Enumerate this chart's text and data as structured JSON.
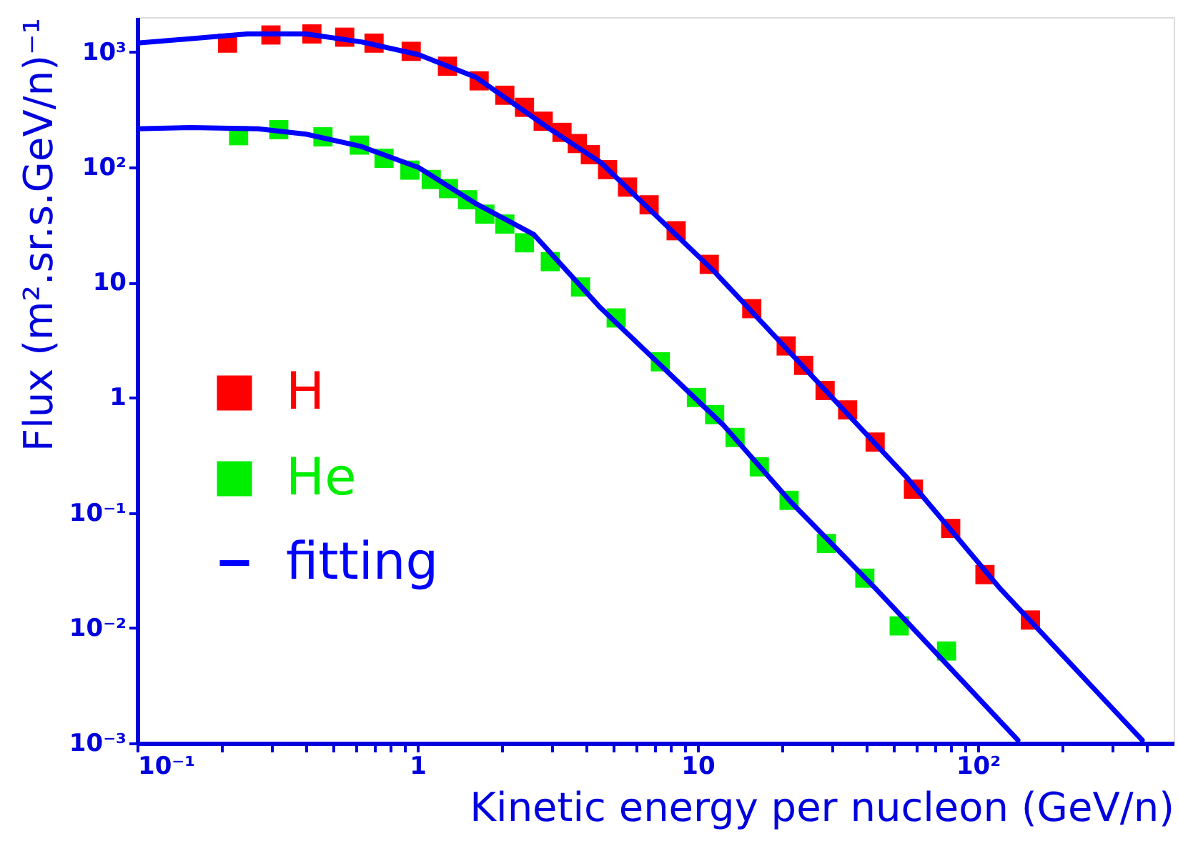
{
  "chart_data": {
    "type": "scatter",
    "xlabel": "Kinetic energy per nucleon (GeV/n)",
    "ylabel": "Flux (m².sr.s.GeV/n)⁻¹",
    "log": "xy",
    "xlim": [
      0.1,
      500
    ],
    "ylim": [
      0.001,
      2000
    ],
    "xticks": [
      {
        "value": 0.1,
        "label": "10⁻¹"
      },
      {
        "value": 0.2,
        "label": null
      },
      {
        "value": 0.3,
        "label": null
      },
      {
        "value": 0.4,
        "label": null
      },
      {
        "value": 0.5,
        "label": null
      },
      {
        "value": 0.6,
        "label": null
      },
      {
        "value": 0.7,
        "label": null
      },
      {
        "value": 0.8,
        "label": null
      },
      {
        "value": 0.9,
        "label": null
      },
      1,
      {
        "value": 2,
        "label": null
      },
      {
        "value": 3,
        "label": null
      },
      {
        "value": 4,
        "label": null
      },
      {
        "value": 5,
        "label": null
      },
      {
        "value": 6,
        "label": null
      },
      {
        "value": 7,
        "label": null
      },
      {
        "value": 8,
        "label": null
      },
      {
        "value": 9,
        "label": null
      },
      10,
      {
        "value": 20,
        "label": null
      },
      {
        "value": 30,
        "label": null
      },
      {
        "value": 40,
        "label": null
      },
      {
        "value": 50,
        "label": null
      },
      {
        "value": 60,
        "label": null
      },
      {
        "value": 70,
        "label": null
      },
      {
        "value": 80,
        "label": null
      },
      {
        "value": 90,
        "label": null
      },
      {
        "value": 100,
        "label": "10²"
      },
      {
        "value": 200,
        "label": null
      },
      {
        "value": 300,
        "label": null
      },
      {
        "value": 400,
        "label": null
      }
    ],
    "yticks": [
      {
        "value": 0.001,
        "label": "10⁻³"
      },
      {
        "value": 0.01,
        "label": "10⁻²"
      },
      {
        "value": 0.1,
        "label": "10⁻¹"
      },
      1,
      10,
      {
        "value": 100,
        "label": "10²"
      },
      {
        "value": 1000,
        "label": "10³"
      }
    ],
    "grid": false,
    "legend": "left",
    "marker": "square",
    "line_style": "solid",
    "series": [
      {
        "name": "H",
        "color": "#ff0000",
        "x": [
          0.21,
          0.3,
          0.42,
          0.55,
          0.7,
          0.95,
          1.28,
          1.66,
          2.05,
          2.41,
          2.81,
          3.28,
          3.72,
          4.14,
          4.77,
          5.62,
          6.71,
          8.38,
          11.0,
          15.6,
          20.7,
          23.9,
          28.5,
          34.3,
          43.0,
          58.9,
          80.0,
          106,
          154
        ],
        "values": [
          1190,
          1400,
          1430,
          1340,
          1190,
          1010,
          750,
          560,
          420,
          330,
          250,
          200,
          160,
          128,
          95,
          67,
          47,
          28,
          14.3,
          5.9,
          2.8,
          1.9,
          1.15,
          0.78,
          0.41,
          0.16,
          0.073,
          0.029,
          0.0117
        ]
      },
      {
        "name": "He",
        "color": "#00ee00",
        "x": [
          0.23,
          0.32,
          0.46,
          0.62,
          0.76,
          0.94,
          1.12,
          1.29,
          1.51,
          1.74,
          2.05,
          2.41,
          2.98,
          3.82,
          5.12,
          7.36,
          9.9,
          11.5,
          13.6,
          16.6,
          21.2,
          28.8,
          39.5,
          52.4,
          77.3
        ],
        "values": [
          187,
          211,
          183,
          155,
          119,
          94,
          78,
          65,
          52,
          39,
          32,
          22,
          15.1,
          9.1,
          4.9,
          2.04,
          1.0,
          0.71,
          0.45,
          0.25,
          0.128,
          0.054,
          0.027,
          0.0104,
          0.0063
        ]
      },
      {
        "name": "fitting",
        "type": "line",
        "marker": "none",
        "color": "#0000ff",
        "x": [
          0.1,
          0.18,
          0.247,
          0.4,
          0.63,
          1.01,
          1.62,
          2.92,
          4.5,
          11.5,
          55,
          121,
          386
        ],
        "values": [
          1190,
          1340,
          1430,
          1430,
          1220,
          945,
          600,
          220,
          110,
          12.3,
          0.21,
          0.0215,
          0.00106
        ]
      },
      {
        "type": "line",
        "marker": "none",
        "color": "#0000ff",
        "x": [
          0.1,
          0.155,
          0.27,
          0.4,
          0.63,
          1.01,
          1.62,
          2.6,
          4.5,
          12.4,
          21.5,
          43.5,
          139
        ],
        "values": [
          215,
          220,
          215,
          193,
          151,
          99,
          48,
          26,
          6.0,
          0.57,
          0.124,
          0.0215,
          0.00106
        ]
      }
    ]
  }
}
